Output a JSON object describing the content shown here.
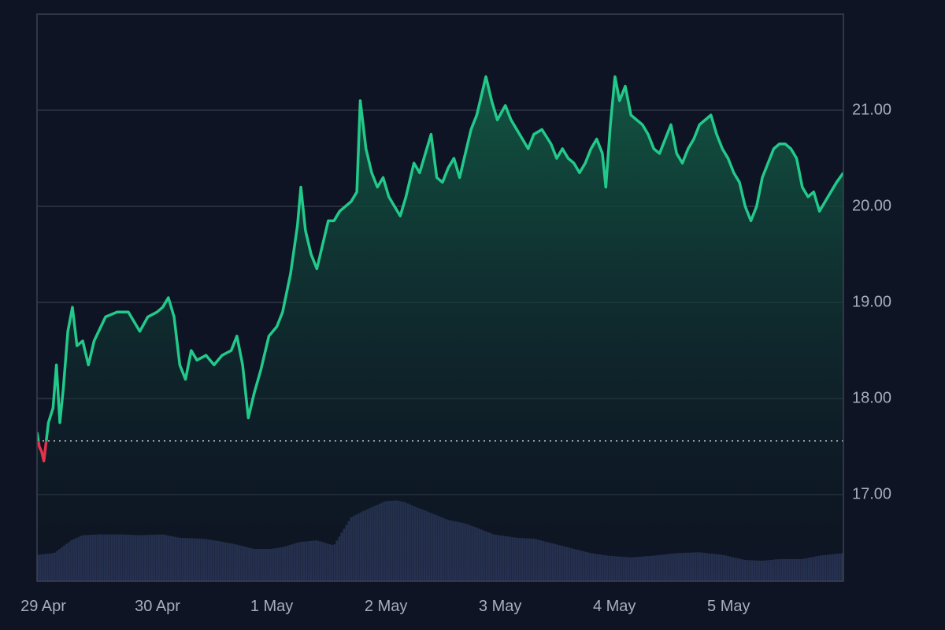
{
  "theme": {
    "background": "#0e1423",
    "grid": "#2f3747",
    "border": "#3a4252",
    "up_line": "#22c98a",
    "down_line": "#e3344b",
    "area_top": "#125a44",
    "area_bottom": "#0e1423",
    "volume": "#2e3a5f",
    "baseline_dots": "#b9bfcc",
    "tick_text": "#a7adbb"
  },
  "chart_data": {
    "type": "area",
    "title": "",
    "xlabel": "",
    "ylabel": "",
    "x_tick_labels": [
      "29 Apr",
      "30 Apr",
      "1 May",
      "2 May",
      "3 May",
      "4 May",
      "5 May"
    ],
    "y_tick_labels": [
      "17.00",
      "18.00",
      "19.00",
      "20.00",
      "21.00"
    ],
    "y_ticks": [
      17,
      18,
      19,
      20,
      21
    ],
    "ylim": [
      16.1,
      22.0
    ],
    "x_range_days": [
      0,
      7.06
    ],
    "baseline": 17.56,
    "grid": true,
    "y_axis_position": "right",
    "series": [
      {
        "points": [
          [
            0.0,
            17.65
          ],
          [
            0.02,
            17.5
          ],
          [
            0.04,
            17.45
          ],
          [
            0.06,
            17.35
          ],
          [
            0.08,
            17.55
          ],
          [
            0.1,
            17.75
          ],
          [
            0.14,
            17.9
          ],
          [
            0.17,
            18.35
          ],
          [
            0.2,
            17.75
          ],
          [
            0.23,
            18.1
          ],
          [
            0.27,
            18.7
          ],
          [
            0.31,
            18.95
          ],
          [
            0.35,
            18.55
          ],
          [
            0.4,
            18.6
          ],
          [
            0.45,
            18.35
          ],
          [
            0.5,
            18.6
          ],
          [
            0.6,
            18.85
          ],
          [
            0.7,
            18.9
          ],
          [
            0.8,
            18.9
          ],
          [
            0.9,
            18.7
          ],
          [
            0.97,
            18.85
          ],
          [
            1.05,
            18.9
          ],
          [
            1.1,
            18.95
          ],
          [
            1.15,
            19.05
          ],
          [
            1.2,
            18.85
          ],
          [
            1.25,
            18.35
          ],
          [
            1.3,
            18.2
          ],
          [
            1.35,
            18.5
          ],
          [
            1.4,
            18.4
          ],
          [
            1.48,
            18.45
          ],
          [
            1.55,
            18.35
          ],
          [
            1.62,
            18.45
          ],
          [
            1.7,
            18.5
          ],
          [
            1.75,
            18.65
          ],
          [
            1.8,
            18.35
          ],
          [
            1.85,
            17.8
          ],
          [
            1.9,
            18.05
          ],
          [
            1.96,
            18.3
          ],
          [
            2.03,
            18.65
          ],
          [
            2.1,
            18.75
          ],
          [
            2.15,
            18.9
          ],
          [
            2.22,
            19.3
          ],
          [
            2.28,
            19.8
          ],
          [
            2.31,
            20.2
          ],
          [
            2.35,
            19.75
          ],
          [
            2.4,
            19.5
          ],
          [
            2.45,
            19.35
          ],
          [
            2.5,
            19.6
          ],
          [
            2.55,
            19.85
          ],
          [
            2.6,
            19.85
          ],
          [
            2.65,
            19.95
          ],
          [
            2.7,
            20.0
          ],
          [
            2.75,
            20.05
          ],
          [
            2.8,
            20.15
          ],
          [
            2.83,
            21.1
          ],
          [
            2.88,
            20.6
          ],
          [
            2.93,
            20.35
          ],
          [
            2.98,
            20.2
          ],
          [
            3.03,
            20.3
          ],
          [
            3.08,
            20.1
          ],
          [
            3.13,
            20.0
          ],
          [
            3.18,
            19.9
          ],
          [
            3.23,
            20.1
          ],
          [
            3.3,
            20.45
          ],
          [
            3.35,
            20.35
          ],
          [
            3.4,
            20.55
          ],
          [
            3.45,
            20.75
          ],
          [
            3.5,
            20.3
          ],
          [
            3.55,
            20.25
          ],
          [
            3.6,
            20.4
          ],
          [
            3.65,
            20.5
          ],
          [
            3.7,
            20.3
          ],
          [
            3.75,
            20.55
          ],
          [
            3.8,
            20.8
          ],
          [
            3.85,
            20.95
          ],
          [
            3.9,
            21.2
          ],
          [
            3.93,
            21.35
          ],
          [
            3.98,
            21.1
          ],
          [
            4.03,
            20.9
          ],
          [
            4.1,
            21.05
          ],
          [
            4.15,
            20.9
          ],
          [
            4.2,
            20.8
          ],
          [
            4.25,
            20.7
          ],
          [
            4.3,
            20.6
          ],
          [
            4.35,
            20.75
          ],
          [
            4.42,
            20.8
          ],
          [
            4.5,
            20.65
          ],
          [
            4.55,
            20.5
          ],
          [
            4.6,
            20.6
          ],
          [
            4.65,
            20.5
          ],
          [
            4.7,
            20.45
          ],
          [
            4.75,
            20.35
          ],
          [
            4.8,
            20.45
          ],
          [
            4.85,
            20.6
          ],
          [
            4.9,
            20.7
          ],
          [
            4.95,
            20.55
          ],
          [
            4.98,
            20.2
          ],
          [
            5.02,
            20.85
          ],
          [
            5.06,
            21.35
          ],
          [
            5.1,
            21.1
          ],
          [
            5.15,
            21.25
          ],
          [
            5.2,
            20.95
          ],
          [
            5.25,
            20.9
          ],
          [
            5.3,
            20.85
          ],
          [
            5.35,
            20.75
          ],
          [
            5.4,
            20.6
          ],
          [
            5.45,
            20.55
          ],
          [
            5.5,
            20.7
          ],
          [
            5.55,
            20.85
          ],
          [
            5.6,
            20.55
          ],
          [
            5.65,
            20.45
          ],
          [
            5.7,
            20.6
          ],
          [
            5.75,
            20.7
          ],
          [
            5.8,
            20.85
          ],
          [
            5.85,
            20.9
          ],
          [
            5.9,
            20.95
          ],
          [
            5.95,
            20.75
          ],
          [
            6.0,
            20.6
          ],
          [
            6.05,
            20.5
          ],
          [
            6.1,
            20.35
          ],
          [
            6.15,
            20.25
          ],
          [
            6.2,
            20.0
          ],
          [
            6.25,
            19.85
          ],
          [
            6.3,
            20.0
          ],
          [
            6.35,
            20.3
          ],
          [
            6.4,
            20.45
          ],
          [
            6.45,
            20.6
          ],
          [
            6.5,
            20.65
          ],
          [
            6.55,
            20.65
          ],
          [
            6.6,
            20.6
          ],
          [
            6.65,
            20.5
          ],
          [
            6.7,
            20.2
          ],
          [
            6.75,
            20.1
          ],
          [
            6.8,
            20.15
          ],
          [
            6.85,
            19.95
          ],
          [
            6.9,
            20.05
          ],
          [
            6.95,
            20.15
          ],
          [
            7.0,
            20.25
          ],
          [
            7.06,
            20.35
          ]
        ]
      }
    ],
    "volume": {
      "type": "area",
      "points": [
        [
          0.0,
          0.31
        ],
        [
          0.15,
          0.33
        ],
        [
          0.3,
          0.48
        ],
        [
          0.4,
          0.54
        ],
        [
          0.55,
          0.55
        ],
        [
          0.75,
          0.55
        ],
        [
          0.9,
          0.54
        ],
        [
          1.1,
          0.55
        ],
        [
          1.25,
          0.51
        ],
        [
          1.45,
          0.5
        ],
        [
          1.6,
          0.47
        ],
        [
          1.75,
          0.43
        ],
        [
          1.9,
          0.38
        ],
        [
          2.05,
          0.38
        ],
        [
          2.15,
          0.4
        ],
        [
          2.3,
          0.46
        ],
        [
          2.45,
          0.48
        ],
        [
          2.6,
          0.42
        ],
        [
          2.75,
          0.75
        ],
        [
          2.85,
          0.82
        ],
        [
          2.95,
          0.88
        ],
        [
          3.05,
          0.94
        ],
        [
          3.15,
          0.95
        ],
        [
          3.22,
          0.93
        ],
        [
          3.32,
          0.87
        ],
        [
          3.42,
          0.82
        ],
        [
          3.6,
          0.72
        ],
        [
          3.75,
          0.68
        ],
        [
          3.85,
          0.63
        ],
        [
          4.0,
          0.55
        ],
        [
          4.2,
          0.51
        ],
        [
          4.35,
          0.5
        ],
        [
          4.5,
          0.45
        ],
        [
          4.7,
          0.38
        ],
        [
          4.85,
          0.33
        ],
        [
          5.0,
          0.3
        ],
        [
          5.2,
          0.28
        ],
        [
          5.4,
          0.3
        ],
        [
          5.6,
          0.33
        ],
        [
          5.8,
          0.34
        ],
        [
          6.0,
          0.31
        ],
        [
          6.2,
          0.25
        ],
        [
          6.35,
          0.24
        ],
        [
          6.5,
          0.26
        ],
        [
          6.7,
          0.26
        ],
        [
          6.85,
          0.3
        ],
        [
          7.06,
          0.33
        ]
      ]
    }
  }
}
